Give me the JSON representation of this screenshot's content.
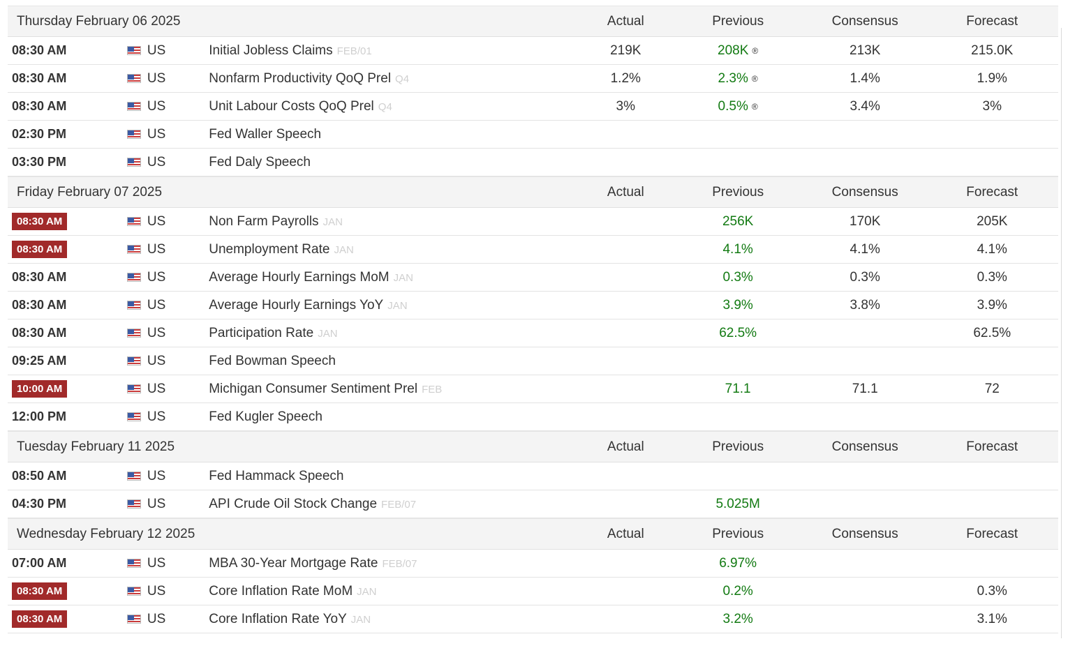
{
  "columns": {
    "actual": "Actual",
    "previous": "Previous",
    "consensus": "Consensus",
    "forecast": "Forecast"
  },
  "colors": {
    "highlight_time": "#a12a2a",
    "previous_value": "#127a12",
    "reference_text": "#cfcfcf"
  },
  "days": [
    {
      "date": "Thursday February 06 2025",
      "events": [
        {
          "time": "08:30 AM",
          "highlight": false,
          "country": "US",
          "name": "Initial Jobless Claims",
          "ref": "FEB/01",
          "actual": "219K",
          "previous": "208K",
          "revised": "®",
          "consensus": "213K",
          "forecast": "215.0K"
        },
        {
          "time": "08:30 AM",
          "highlight": false,
          "country": "US",
          "name": "Nonfarm Productivity QoQ Prel",
          "ref": "Q4",
          "actual": "1.2%",
          "previous": "2.3%",
          "revised": "®",
          "consensus": "1.4%",
          "forecast": "1.9%"
        },
        {
          "time": "08:30 AM",
          "highlight": false,
          "country": "US",
          "name": "Unit Labour Costs QoQ Prel",
          "ref": "Q4",
          "actual": "3%",
          "previous": "0.5%",
          "revised": "®",
          "consensus": "3.4%",
          "forecast": "3%"
        },
        {
          "time": "02:30 PM",
          "highlight": false,
          "country": "US",
          "name": "Fed Waller Speech",
          "ref": "",
          "actual": "",
          "previous": "",
          "revised": "",
          "consensus": "",
          "forecast": ""
        },
        {
          "time": "03:30 PM",
          "highlight": false,
          "country": "US",
          "name": "Fed Daly Speech",
          "ref": "",
          "actual": "",
          "previous": "",
          "revised": "",
          "consensus": "",
          "forecast": ""
        }
      ]
    },
    {
      "date": "Friday February 07 2025",
      "events": [
        {
          "time": "08:30 AM",
          "highlight": true,
          "country": "US",
          "name": "Non Farm Payrolls",
          "ref": "JAN",
          "actual": "",
          "previous": "256K",
          "revised": "",
          "consensus": "170K",
          "forecast": "205K"
        },
        {
          "time": "08:30 AM",
          "highlight": true,
          "country": "US",
          "name": "Unemployment Rate",
          "ref": "JAN",
          "actual": "",
          "previous": "4.1%",
          "revised": "",
          "consensus": "4.1%",
          "forecast": "4.1%"
        },
        {
          "time": "08:30 AM",
          "highlight": false,
          "country": "US",
          "name": "Average Hourly Earnings MoM",
          "ref": "JAN",
          "actual": "",
          "previous": "0.3%",
          "revised": "",
          "consensus": "0.3%",
          "forecast": "0.3%"
        },
        {
          "time": "08:30 AM",
          "highlight": false,
          "country": "US",
          "name": "Average Hourly Earnings YoY",
          "ref": "JAN",
          "actual": "",
          "previous": "3.9%",
          "revised": "",
          "consensus": "3.8%",
          "forecast": "3.9%"
        },
        {
          "time": "08:30 AM",
          "highlight": false,
          "country": "US",
          "name": "Participation Rate",
          "ref": "JAN",
          "actual": "",
          "previous": "62.5%",
          "revised": "",
          "consensus": "",
          "forecast": "62.5%"
        },
        {
          "time": "09:25 AM",
          "highlight": false,
          "country": "US",
          "name": "Fed Bowman Speech",
          "ref": "",
          "actual": "",
          "previous": "",
          "revised": "",
          "consensus": "",
          "forecast": ""
        },
        {
          "time": "10:00 AM",
          "highlight": true,
          "country": "US",
          "name": "Michigan Consumer Sentiment Prel",
          "ref": "FEB",
          "actual": "",
          "previous": "71.1",
          "revised": "",
          "consensus": "71.1",
          "forecast": "72"
        },
        {
          "time": "12:00 PM",
          "highlight": false,
          "country": "US",
          "name": "Fed Kugler Speech",
          "ref": "",
          "actual": "",
          "previous": "",
          "revised": "",
          "consensus": "",
          "forecast": ""
        }
      ]
    },
    {
      "date": "Tuesday February 11 2025",
      "events": [
        {
          "time": "08:50 AM",
          "highlight": false,
          "country": "US",
          "name": "Fed Hammack Speech",
          "ref": "",
          "actual": "",
          "previous": "",
          "revised": "",
          "consensus": "",
          "forecast": ""
        },
        {
          "time": "04:30 PM",
          "highlight": false,
          "country": "US",
          "name": "API Crude Oil Stock Change",
          "ref": "FEB/07",
          "actual": "",
          "previous": "5.025M",
          "revised": "",
          "consensus": "",
          "forecast": ""
        }
      ]
    },
    {
      "date": "Wednesday February 12 2025",
      "events": [
        {
          "time": "07:00 AM",
          "highlight": false,
          "country": "US",
          "name": "MBA 30-Year Mortgage Rate",
          "ref": "FEB/07",
          "actual": "",
          "previous": "6.97%",
          "revised": "",
          "consensus": "",
          "forecast": ""
        },
        {
          "time": "08:30 AM",
          "highlight": true,
          "country": "US",
          "name": "Core Inflation Rate MoM",
          "ref": "JAN",
          "actual": "",
          "previous": "0.2%",
          "revised": "",
          "consensus": "",
          "forecast": "0.3%"
        },
        {
          "time": "08:30 AM",
          "highlight": true,
          "country": "US",
          "name": "Core Inflation Rate YoY",
          "ref": "JAN",
          "actual": "",
          "previous": "3.2%",
          "revised": "",
          "consensus": "",
          "forecast": "3.1%"
        }
      ]
    }
  ]
}
